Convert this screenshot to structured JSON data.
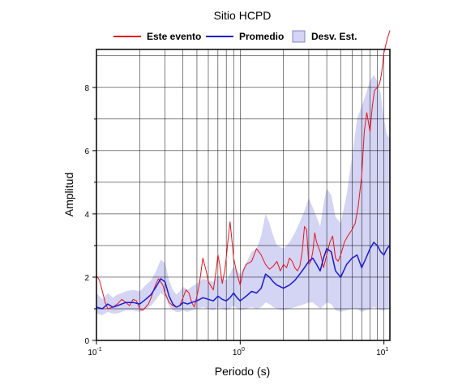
{
  "chart_data": {
    "type": "line",
    "title": "Sitio HCPD",
    "xlabel": "Periodo (s)",
    "ylabel": "Amplitud",
    "x_scale": "log",
    "xlim": [
      0.1,
      11
    ],
    "ylim": [
      0,
      9.2
    ],
    "grid": true,
    "legend_position": "top",
    "x_ticks": [
      {
        "value": 0.1,
        "base": "10",
        "exp": "-1"
      },
      {
        "value": 1,
        "base": "10",
        "exp": "0"
      },
      {
        "value": 10,
        "base": "10",
        "exp": "1"
      }
    ],
    "y_ticks": [
      0,
      2,
      4,
      6,
      8
    ],
    "legend": [
      {
        "label": "Este evento",
        "kind": "line",
        "color": "#e8141c"
      },
      {
        "label": "Promedio",
        "kind": "line",
        "color": "#1a1ad6"
      },
      {
        "label": "Desv. Est.",
        "kind": "band",
        "color": "#d4d4f4"
      }
    ],
    "series": [
      {
        "name": "Este evento",
        "color": "#e8141c",
        "x": [
          0.1,
          0.105,
          0.11,
          0.115,
          0.12,
          0.13,
          0.14,
          0.15,
          0.16,
          0.17,
          0.18,
          0.19,
          0.2,
          0.21,
          0.22,
          0.23,
          0.24,
          0.25,
          0.26,
          0.27,
          0.28,
          0.29,
          0.3,
          0.32,
          0.34,
          0.36,
          0.38,
          0.4,
          0.42,
          0.44,
          0.46,
          0.48,
          0.5,
          0.52,
          0.55,
          0.58,
          0.6,
          0.62,
          0.65,
          0.68,
          0.7,
          0.72,
          0.75,
          0.78,
          0.8,
          0.82,
          0.85,
          0.87,
          0.9,
          0.95,
          1.0,
          1.05,
          1.1,
          1.2,
          1.3,
          1.4,
          1.5,
          1.6,
          1.7,
          1.8,
          1.9,
          2.0,
          2.1,
          2.2,
          2.3,
          2.4,
          2.5,
          2.6,
          2.7,
          2.8,
          2.9,
          3.0,
          3.1,
          3.2,
          3.3,
          3.4,
          3.6,
          3.8,
          4.0,
          4.2,
          4.4,
          4.6,
          4.8,
          5.0,
          5.3,
          5.6,
          6.0,
          6.3,
          6.6,
          7.0,
          7.3,
          7.6,
          8.0,
          8.3,
          8.6,
          9.0,
          9.3,
          9.6,
          10.0,
          10.5,
          11.0
        ],
        "values": [
          2.05,
          1.9,
          1.55,
          1.2,
          1.0,
          1.05,
          1.15,
          1.3,
          1.2,
          1.1,
          1.3,
          1.25,
          1.0,
          0.95,
          1.05,
          1.15,
          1.35,
          1.6,
          1.8,
          1.95,
          1.85,
          1.75,
          1.5,
          1.2,
          1.1,
          1.05,
          1.1,
          1.35,
          1.6,
          1.5,
          1.2,
          1.05,
          1.4,
          1.8,
          2.6,
          2.2,
          1.85,
          1.75,
          1.6,
          2.2,
          2.7,
          2.4,
          1.8,
          2.2,
          2.6,
          3.1,
          3.75,
          3.3,
          2.6,
          2.1,
          1.75,
          2.2,
          2.4,
          2.5,
          2.9,
          2.7,
          2.4,
          2.25,
          2.35,
          2.5,
          2.2,
          2.4,
          2.3,
          2.6,
          2.5,
          2.3,
          2.2,
          2.35,
          2.8,
          3.6,
          3.5,
          2.4,
          2.5,
          2.8,
          3.4,
          3.1,
          2.8,
          2.3,
          2.7,
          3.1,
          3.3,
          2.6,
          2.5,
          2.7,
          3.1,
          3.3,
          3.5,
          3.7,
          4.2,
          5.2,
          6.6,
          7.2,
          6.6,
          7.4,
          7.9,
          8.0,
          8.1,
          8.4,
          9.1,
          9.5,
          9.8
        ]
      },
      {
        "name": "Promedio",
        "color": "#1a1ad6",
        "x": [
          0.1,
          0.11,
          0.12,
          0.13,
          0.14,
          0.15,
          0.16,
          0.18,
          0.2,
          0.22,
          0.24,
          0.26,
          0.28,
          0.3,
          0.32,
          0.34,
          0.36,
          0.38,
          0.4,
          0.43,
          0.46,
          0.5,
          0.55,
          0.6,
          0.65,
          0.7,
          0.75,
          0.8,
          0.85,
          0.9,
          0.95,
          1.0,
          1.1,
          1.2,
          1.3,
          1.4,
          1.5,
          1.6,
          1.7,
          1.8,
          2.0,
          2.2,
          2.4,
          2.6,
          2.8,
          3.0,
          3.2,
          3.4,
          3.6,
          3.8,
          4.0,
          4.3,
          4.6,
          5.0,
          5.5,
          6.0,
          6.5,
          7.0,
          7.5,
          8.0,
          8.5,
          9.0,
          9.5,
          10.0,
          10.5,
          11.0
        ],
        "values": [
          1.05,
          1.0,
          1.15,
          1.05,
          1.1,
          1.15,
          1.2,
          1.2,
          1.15,
          1.3,
          1.45,
          1.7,
          1.95,
          1.85,
          1.4,
          1.15,
          1.05,
          1.1,
          1.2,
          1.15,
          1.2,
          1.25,
          1.35,
          1.3,
          1.25,
          1.4,
          1.3,
          1.25,
          1.35,
          1.5,
          1.35,
          1.25,
          1.4,
          1.55,
          1.5,
          1.65,
          2.1,
          2.0,
          1.85,
          1.75,
          1.65,
          1.75,
          1.9,
          2.1,
          2.3,
          2.5,
          2.6,
          2.4,
          2.2,
          2.6,
          2.9,
          2.8,
          2.2,
          2.0,
          2.4,
          2.6,
          2.7,
          2.3,
          2.6,
          2.9,
          3.1,
          3.0,
          2.8,
          2.7,
          2.9,
          3.0
        ]
      }
    ],
    "band": {
      "name": "Desv. Est.",
      "color": "#d4d4f4",
      "x": [
        0.1,
        0.11,
        0.12,
        0.13,
        0.14,
        0.15,
        0.16,
        0.18,
        0.2,
        0.22,
        0.24,
        0.26,
        0.28,
        0.3,
        0.32,
        0.34,
        0.36,
        0.38,
        0.4,
        0.43,
        0.46,
        0.5,
        0.55,
        0.6,
        0.65,
        0.7,
        0.75,
        0.8,
        0.85,
        0.9,
        0.95,
        1.0,
        1.1,
        1.2,
        1.3,
        1.4,
        1.5,
        1.6,
        1.7,
        1.8,
        2.0,
        2.2,
        2.4,
        2.6,
        2.8,
        3.0,
        3.2,
        3.4,
        3.6,
        3.8,
        4.0,
        4.3,
        4.6,
        5.0,
        5.5,
        6.0,
        6.5,
        7.0,
        7.5,
        8.0,
        8.5,
        9.0,
        9.5,
        10.0,
        10.5,
        11.0
      ],
      "upper": [
        1.5,
        1.3,
        1.5,
        1.35,
        1.45,
        1.5,
        1.55,
        1.6,
        1.55,
        1.75,
        1.9,
        2.2,
        2.55,
        2.45,
        1.9,
        1.6,
        1.45,
        1.55,
        1.7,
        1.6,
        1.7,
        1.8,
        1.95,
        1.9,
        1.85,
        2.05,
        1.95,
        1.9,
        2.1,
        2.35,
        2.2,
        2.1,
        2.45,
        2.8,
        2.9,
        3.3,
        4.0,
        3.7,
        3.3,
        3.0,
        2.9,
        3.1,
        3.4,
        3.75,
        4.1,
        4.5,
        4.2,
        3.9,
        3.6,
        4.3,
        4.8,
        4.6,
        3.9,
        3.7,
        4.6,
        5.8,
        7.0,
        7.4,
        7.8,
        8.2,
        8.4,
        8.2,
        7.8,
        7.0,
        6.5,
        6.4
      ],
      "lower": [
        0.85,
        0.8,
        0.9,
        0.85,
        0.85,
        0.9,
        0.95,
        0.95,
        0.9,
        1.0,
        1.1,
        1.3,
        1.5,
        1.4,
        1.1,
        0.95,
        0.9,
        0.9,
        0.95,
        0.9,
        0.95,
        1.0,
        1.05,
        1.0,
        0.95,
        1.05,
        1.0,
        0.95,
        1.0,
        1.1,
        1.0,
        0.95,
        1.0,
        1.05,
        1.0,
        1.05,
        1.2,
        1.15,
        1.05,
        1.0,
        0.95,
        1.0,
        1.05,
        1.1,
        1.15,
        1.2,
        1.2,
        1.1,
        1.0,
        1.1,
        1.2,
        1.15,
        0.95,
        0.9,
        0.95,
        1.0,
        1.0,
        0.9,
        0.95,
        1.0,
        1.05,
        1.0,
        0.95,
        0.95,
        1.0,
        1.0
      ]
    }
  }
}
